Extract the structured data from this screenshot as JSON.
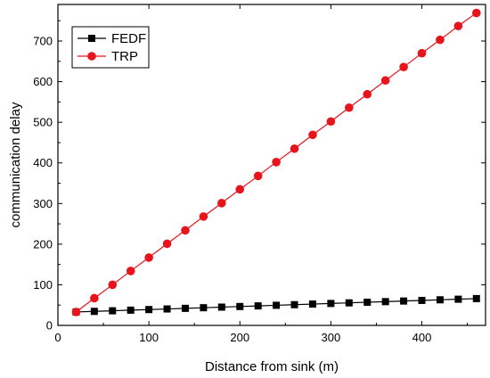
{
  "chart_data": {
    "type": "line",
    "xlabel": "Distance from sink (m)",
    "ylabel": "communication delay",
    "xlim": [
      0,
      470
    ],
    "ylim": [
      0,
      790
    ],
    "xticks": [
      0,
      100,
      200,
      300,
      400
    ],
    "yticks": [
      0,
      100,
      200,
      300,
      400,
      500,
      600,
      700
    ],
    "legend_position": "top-left",
    "x": [
      20,
      40,
      60,
      80,
      100,
      120,
      140,
      160,
      180,
      200,
      220,
      240,
      260,
      280,
      300,
      320,
      340,
      360,
      380,
      400,
      420,
      440,
      460
    ],
    "series": [
      {
        "name": "FEDF",
        "color": "#000000",
        "marker": "square",
        "values": [
          33,
          34.5,
          36,
          37.5,
          39,
          40.5,
          42,
          43.5,
          45,
          46.5,
          48,
          49.5,
          51,
          52.5,
          54,
          55.5,
          57,
          58.5,
          60,
          61.5,
          63,
          64.5,
          66
        ]
      },
      {
        "name": "TRP",
        "color": "#e8141c",
        "marker": "circle",
        "values": [
          33,
          67,
          100,
          134,
          167,
          201,
          234,
          268,
          301,
          335,
          368,
          402,
          435,
          469,
          502,
          536,
          569,
          603,
          636,
          670,
          703,
          737,
          769
        ]
      }
    ]
  }
}
